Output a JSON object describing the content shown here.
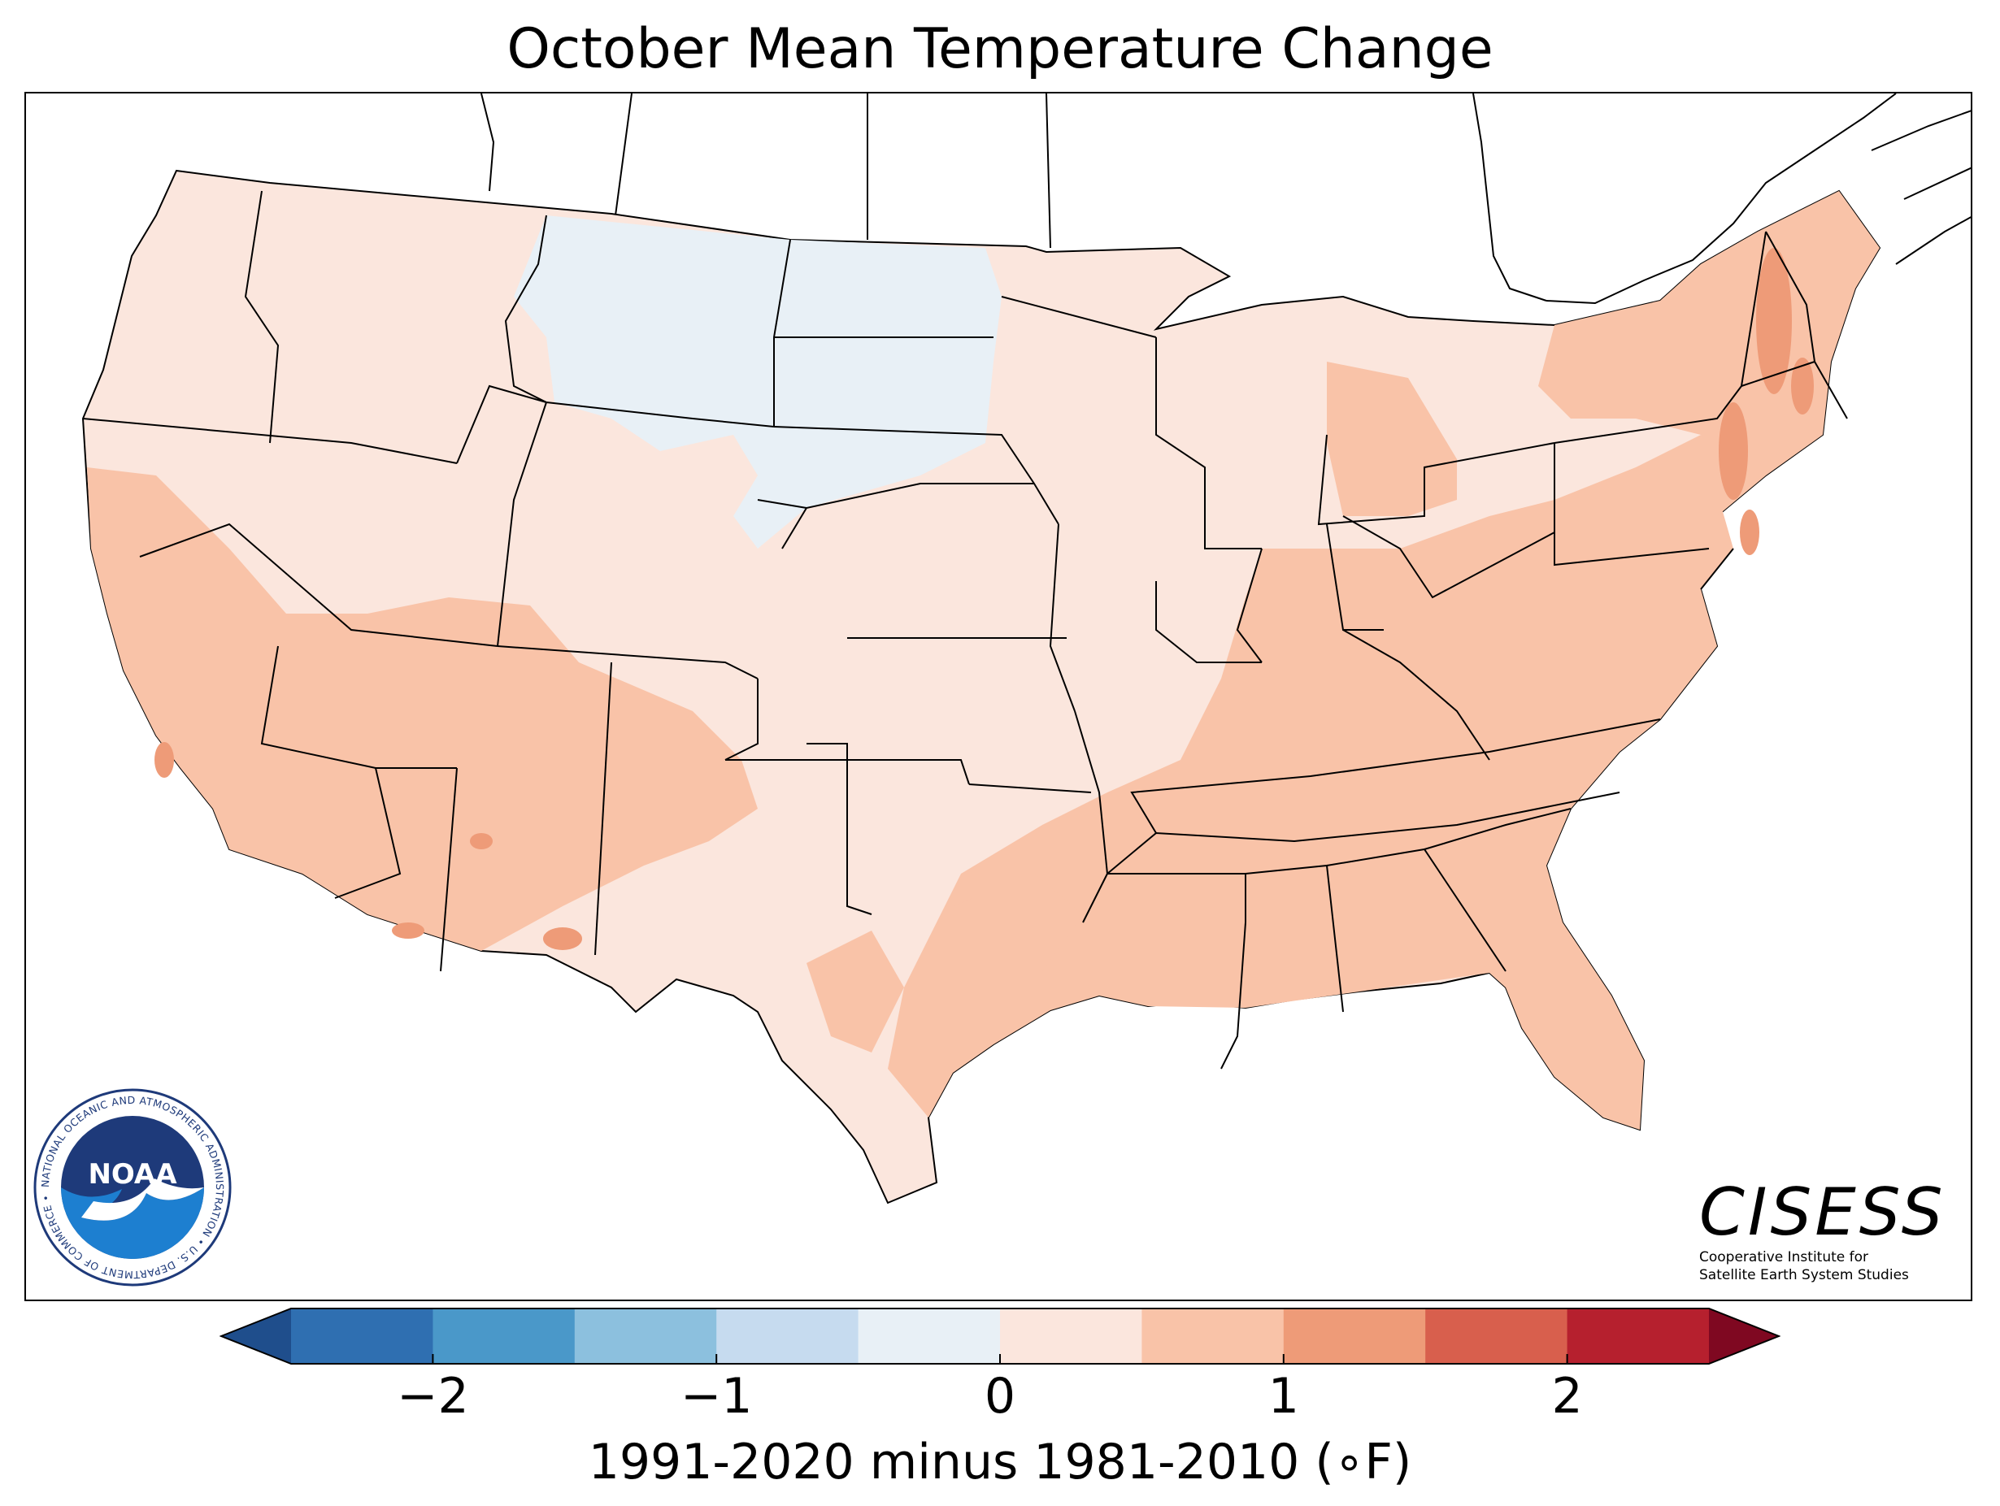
{
  "title": "October Mean Temperature Change",
  "colorbar": {
    "label": "1991-2020 minus 1981-2010 (∘F)",
    "ticks": [
      {
        "value": -2,
        "label": "−2"
      },
      {
        "value": -1,
        "label": "−1"
      },
      {
        "value": 0,
        "label": "0"
      },
      {
        "value": 1,
        "label": "1"
      },
      {
        "value": 2,
        "label": "2"
      }
    ],
    "range": [
      -2.5,
      2.5
    ],
    "bin_width": 0.5,
    "extend": "both",
    "colors": [
      "#1f4e8c",
      "#2f6fb1",
      "#4a98c9",
      "#8cc0de",
      "#c6dbef",
      "#e8f0f6",
      "#fbe6dd",
      "#f9c3a8",
      "#ee9b78",
      "#d85f4d",
      "#b6202e",
      "#7f0821"
    ]
  },
  "map": {
    "region": "Contiguous United States",
    "variable": "October mean temperature change",
    "units": "°F",
    "dominant_bins": [
      "0 to 0.5",
      "0.5 to 1"
    ],
    "cool_region": "Northern Plains",
    "warmest_region": "Northeast"
  },
  "noaa_logo": {
    "ring_text": "NATIONAL OCEANIC AND ATMOSPHERIC ADMINISTRATION • U.S. DEPARTMENT OF COMMERCE •",
    "center_text": "NOAA"
  },
  "cisess": {
    "name": "CISESS",
    "line1": "Cooperative Institute for",
    "line2": "Satellite Earth System Studies"
  }
}
